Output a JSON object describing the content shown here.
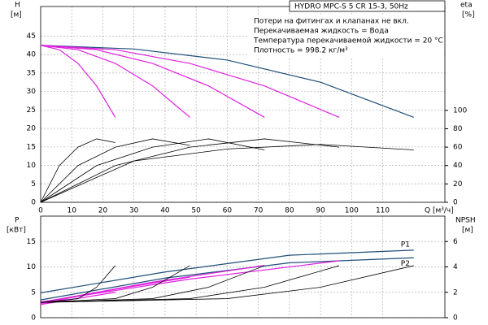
{
  "chart_data": [
    {
      "type": "line",
      "title": "HYDRO MPC-S 5 CR 15-3, 50Hz",
      "annotations": [
        "Потери на фитингах и клапанах не вкл.",
        "Перекачиваемая жидкость = Вода",
        "Температура перекачиваемой жидкости = 20 °C",
        "Плотность = 998.2 кг/м³"
      ],
      "ylabel": "H",
      "yunit": "[м]",
      "y2label": "eta",
      "y2unit": "[%]",
      "xlabel": "Q [м³/ч]",
      "xlim": [
        0,
        130
      ],
      "xticks": [
        0,
        10,
        20,
        30,
        40,
        50,
        60,
        70,
        80,
        90,
        100,
        110
      ],
      "ylim": [
        0,
        53
      ],
      "yticks": [
        0,
        5,
        10,
        15,
        20,
        25,
        30,
        35,
        40,
        45
      ],
      "y2lim": [
        0,
        213
      ],
      "y2ticks": [
        0,
        20,
        40,
        60,
        80,
        100
      ],
      "grid": true,
      "series": [
        {
          "color": "#1f4e79",
          "x": [
            0,
            30,
            60,
            90,
            120
          ],
          "values": [
            42.5,
            41.5,
            38.5,
            32.5,
            23
          ]
        },
        {
          "color": "#e020e0",
          "x": [
            0,
            6,
            12,
            18,
            24
          ],
          "values": [
            42.5,
            41.3,
            37.6,
            31.5,
            23
          ]
        },
        {
          "color": "#e020e0",
          "x": [
            0,
            12,
            24,
            36,
            48
          ],
          "values": [
            42.5,
            41.3,
            37.6,
            31.5,
            23
          ]
        },
        {
          "color": "#e020e0",
          "x": [
            0,
            18,
            36,
            54,
            72
          ],
          "values": [
            42.5,
            41.3,
            37.6,
            31.5,
            23
          ]
        },
        {
          "color": "#e020e0",
          "x": [
            0,
            24,
            48,
            72,
            96
          ],
          "values": [
            42.5,
            41.3,
            37.6,
            31.5,
            23
          ]
        },
        {
          "color": "#000000",
          "axis": "y2",
          "x": [
            0,
            6,
            12,
            18,
            24
          ],
          "values": [
            0,
            40,
            60,
            69,
            65
          ]
        },
        {
          "color": "#000000",
          "axis": "y2",
          "x": [
            0,
            12,
            24,
            36,
            48
          ],
          "values": [
            0,
            40,
            60,
            69,
            62
          ]
        },
        {
          "color": "#000000",
          "axis": "y2",
          "x": [
            0,
            18,
            36,
            54,
            72
          ],
          "values": [
            0,
            40,
            60,
            69,
            57
          ]
        },
        {
          "color": "#000000",
          "axis": "y2",
          "x": [
            0,
            24,
            48,
            72,
            96
          ],
          "values": [
            0,
            40,
            60,
            69,
            60
          ]
        },
        {
          "color": "#000000",
          "axis": "y2",
          "x": [
            0,
            30,
            60,
            90,
            120
          ],
          "values": [
            0,
            45,
            58,
            63,
            57
          ]
        }
      ]
    },
    {
      "type": "line",
      "ylabel": "P",
      "yunit": "[кВт]",
      "y2label": "NPSH",
      "y2unit": "[м]",
      "xlim": [
        0,
        130
      ],
      "xticks": [
        0,
        10,
        20,
        30,
        40,
        50,
        60,
        70,
        80,
        90,
        100,
        110
      ],
      "ylim": [
        0,
        20
      ],
      "yticks": [
        0,
        5,
        10,
        15
      ],
      "y2lim": [
        0,
        8
      ],
      "y2ticks": [
        0,
        2,
        4,
        6
      ],
      "grid": true,
      "series": [
        {
          "name": "P1",
          "color": "#1f4e79",
          "x": [
            0,
            40,
            80,
            120
          ],
          "values": [
            4.9,
            9,
            12.3,
            13.3
          ]
        },
        {
          "name": "P2",
          "color": "#1f4e79",
          "x": [
            0,
            40,
            80,
            120
          ],
          "values": [
            3.5,
            7.8,
            10.8,
            11.8
          ]
        },
        {
          "color": "#e020e0",
          "x": [
            0,
            12,
            24
          ],
          "values": [
            2.6,
            3.8,
            5
          ]
        },
        {
          "color": "#e020e0",
          "x": [
            0,
            24,
            48
          ],
          "values": [
            2.8,
            5.6,
            8
          ]
        },
        {
          "color": "#e020e0",
          "x": [
            0,
            36,
            72
          ],
          "values": [
            3,
            7,
            10.3
          ]
        },
        {
          "color": "#e020e0",
          "x": [
            0,
            48,
            96
          ],
          "values": [
            3.1,
            7.6,
            11.2
          ]
        },
        {
          "color": "#000000",
          "axis": "y2",
          "x": [
            0,
            12,
            18,
            24
          ],
          "values": [
            1.2,
            1.5,
            2.4,
            4.1
          ]
        },
        {
          "color": "#000000",
          "axis": "y2",
          "x": [
            0,
            24,
            36,
            48
          ],
          "values": [
            1.2,
            1.5,
            2.4,
            4.1
          ]
        },
        {
          "color": "#000000",
          "axis": "y2",
          "x": [
            0,
            36,
            54,
            72
          ],
          "values": [
            1.2,
            1.5,
            2.4,
            4.1
          ]
        },
        {
          "color": "#000000",
          "axis": "y2",
          "x": [
            0,
            48,
            72,
            96
          ],
          "values": [
            1.2,
            1.5,
            2.4,
            4.1
          ]
        },
        {
          "color": "#000000",
          "axis": "y2",
          "x": [
            0,
            60,
            90,
            120
          ],
          "values": [
            1.2,
            1.5,
            2.4,
            4.1
          ]
        }
      ]
    }
  ]
}
